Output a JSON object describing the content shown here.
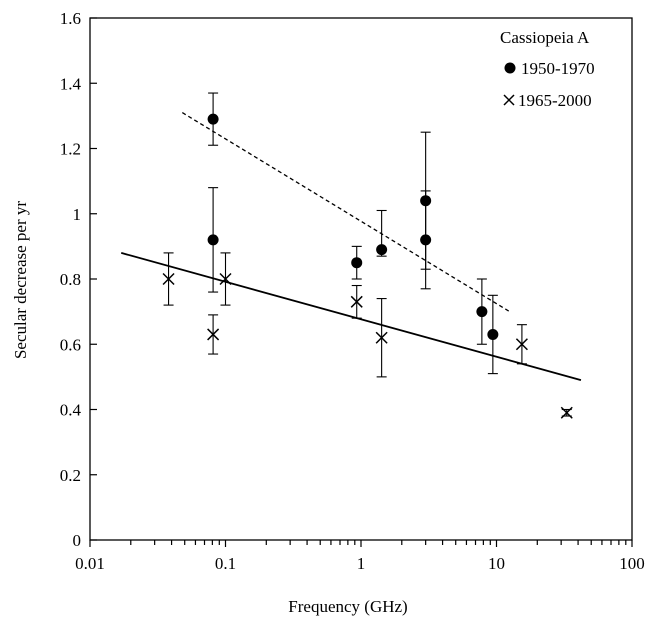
{
  "chart_data": {
    "type": "scatter",
    "title": "",
    "xlabel": "Frequency (GHz)",
    "ylabel": "Secular decrease per yr",
    "xscale": "log",
    "xlim": [
      0.01,
      100
    ],
    "ylim": [
      0,
      1.6
    ],
    "x_tick_labels": [
      "0.01",
      "0.1",
      "1",
      "10",
      "100"
    ],
    "x_tick_values": [
      0.01,
      0.1,
      1,
      10,
      100
    ],
    "y_tick_labels": [
      "0",
      "0.2",
      "0.4",
      "0.6",
      "0.8",
      "1",
      "1.2",
      "1.4",
      "1.6"
    ],
    "y_tick_values": [
      0,
      0.2,
      0.4,
      0.6,
      0.8,
      1,
      1.2,
      1.4,
      1.6
    ],
    "grid": false,
    "legend": {
      "placement": "top-right",
      "title": "Cassiopeia A",
      "entries": [
        "1950-1970",
        "1965-2000"
      ]
    },
    "series": [
      {
        "name": "1950-1970",
        "marker": "filled-circle",
        "points": [
          {
            "x": 0.081,
            "y": 1.29,
            "lo": 1.21,
            "hi": 1.37
          },
          {
            "x": 0.081,
            "y": 0.92,
            "lo": 0.76,
            "hi": 1.08
          },
          {
            "x": 0.93,
            "y": 0.85,
            "lo": 0.8,
            "hi": 0.9
          },
          {
            "x": 1.42,
            "y": 0.89,
            "lo": 0.87,
            "hi": 1.01
          },
          {
            "x": 3.0,
            "y": 1.04,
            "lo": 0.83,
            "hi": 1.25
          },
          {
            "x": 3.0,
            "y": 0.92,
            "lo": 0.77,
            "hi": 1.07
          },
          {
            "x": 7.8,
            "y": 0.7,
            "lo": 0.6,
            "hi": 0.8
          },
          {
            "x": 9.4,
            "y": 0.63,
            "lo": 0.51,
            "hi": 0.75
          }
        ]
      },
      {
        "name": "1965-2000",
        "marker": "cross",
        "points": [
          {
            "x": 0.038,
            "y": 0.8,
            "lo": 0.72,
            "hi": 0.88
          },
          {
            "x": 0.081,
            "y": 0.63,
            "lo": 0.57,
            "hi": 0.69
          },
          {
            "x": 0.1,
            "y": 0.8,
            "lo": 0.72,
            "hi": 0.88
          },
          {
            "x": 0.93,
            "y": 0.73,
            "lo": 0.68,
            "hi": 0.78
          },
          {
            "x": 1.42,
            "y": 0.62,
            "lo": 0.5,
            "hi": 0.74
          },
          {
            "x": 15.4,
            "y": 0.6,
            "lo": 0.54,
            "hi": 0.66
          },
          {
            "x": 33,
            "y": 0.39,
            "lo": 0.38,
            "hi": 0.4
          }
        ]
      }
    ],
    "fit_lines": [
      {
        "series": "1950-1970",
        "style": "dashed",
        "x": [
          0.048,
          12.5
        ],
        "y": [
          1.31,
          0.7
        ]
      },
      {
        "series": "1965-2000",
        "style": "solid",
        "x": [
          0.017,
          42
        ],
        "y": [
          0.88,
          0.49
        ]
      }
    ]
  }
}
